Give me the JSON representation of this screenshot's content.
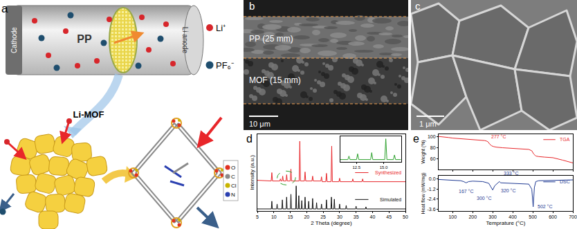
{
  "figure": {
    "a": {
      "label": "a",
      "cell": {
        "cathode": "Cathode",
        "separator": "PP",
        "anode": "Li anode"
      },
      "material": "Li-MOF",
      "ions": [
        {
          "label": "Li⁺",
          "color": "#d7262b"
        },
        {
          "label": "PF₆⁻",
          "color": "#1f4e6e"
        }
      ],
      "atoms": [
        {
          "label": "O",
          "color": "#e03020"
        },
        {
          "label": "C",
          "color": "#8a8a8a"
        },
        {
          "label": "Cl",
          "color": "#c8b400"
        },
        {
          "label": "N",
          "color": "#2a3fb0"
        }
      ]
    },
    "b": {
      "label": "b",
      "layers": [
        "PP (25 mm)",
        "MOF (15 mm)"
      ],
      "scale_bar": "10 μm"
    },
    "c": {
      "label": "c",
      "scale_bar": "1 μm"
    },
    "d": {
      "label": "d"
    },
    "e": {
      "label": "e"
    }
  },
  "chart_data": [
    {
      "type": "line",
      "x_label": "2 Theta (degree)",
      "y_label": "Intensity (a.u.)",
      "xlim": [
        5,
        50
      ],
      "xticks": [
        5,
        10,
        15,
        20,
        25,
        30,
        35,
        40,
        45,
        50
      ],
      "ylim": [
        0,
        1.1
      ],
      "tick_labels": "x",
      "grid": false,
      "series": [
        {
          "name": "Synthesized",
          "color": "#e8262a",
          "x": [
            5,
            9.2,
            9.4,
            9.6,
            11.8,
            12.0,
            12.2,
            12.5,
            12.7,
            12.9,
            13.7,
            13.9,
            14.1,
            15.0,
            15.2,
            15.4,
            17.7,
            17.9,
            18.1,
            19.3,
            19.5,
            19.7,
            21.6,
            21.8,
            22.0,
            24.3,
            24.5,
            24.7,
            25.8,
            26.0,
            26.2,
            27.4,
            27.6,
            27.8,
            29.8,
            30.0,
            30.2,
            33.8,
            34.0,
            34.2,
            36.8,
            37.0,
            37.2,
            50
          ],
          "values": [
            0.44,
            0.43,
            0.55,
            0.43,
            0.43,
            0.46,
            0.43,
            0.43,
            0.5,
            0.43,
            0.43,
            0.52,
            0.43,
            0.43,
            0.6,
            0.43,
            0.43,
            1.0,
            0.43,
            0.43,
            0.56,
            0.43,
            0.43,
            0.5,
            0.43,
            0.43,
            0.49,
            0.42,
            0.42,
            0.54,
            0.42,
            0.42,
            0.93,
            0.42,
            0.42,
            0.47,
            0.42,
            0.42,
            0.46,
            0.42,
            0.42,
            0.46,
            0.42,
            0.42
          ]
        },
        {
          "name": "Simulated",
          "color": "#111111",
          "x": [
            5,
            9.25,
            9.4,
            9.55,
            10.85,
            11.0,
            11.15,
            12.45,
            12.6,
            12.75,
            13.75,
            13.9,
            14.05,
            15.05,
            15.2,
            15.35,
            16.65,
            16.8,
            16.95,
            17.45,
            17.6,
            17.75,
            18.35,
            18.5,
            18.65,
            19.35,
            19.5,
            19.65,
            20.45,
            20.6,
            20.75,
            21.65,
            21.8,
            21.95,
            22.85,
            23.0,
            23.15,
            24.35,
            24.5,
            24.65,
            25.85,
            26.0,
            26.15,
            27.35,
            27.5,
            27.65,
            28.25,
            28.4,
            28.55,
            29.85,
            30.0,
            30.15,
            31.85,
            32.0,
            32.15,
            34.85,
            35.0,
            35.15,
            37.85,
            38.0,
            38.15,
            50
          ],
          "values": [
            0.03,
            0.03,
            0.14,
            0.03,
            0.03,
            0.1,
            0.03,
            0.03,
            0.16,
            0.03,
            0.03,
            0.2,
            0.03,
            0.03,
            0.24,
            0.03,
            0.03,
            0.36,
            0.03,
            0.03,
            0.22,
            0.03,
            0.03,
            0.15,
            0.03,
            0.03,
            0.2,
            0.03,
            0.03,
            0.14,
            0.03,
            0.03,
            0.18,
            0.03,
            0.03,
            0.12,
            0.03,
            0.03,
            0.1,
            0.03,
            0.03,
            0.16,
            0.03,
            0.03,
            0.2,
            0.03,
            0.03,
            0.17,
            0.03,
            0.03,
            0.1,
            0.03,
            0.03,
            0.08,
            0.03,
            0.03,
            0.07,
            0.03,
            0.03,
            0.06,
            0.03,
            0.03
          ]
        }
      ]
    },
    {
      "type": "line",
      "xlim": [
        11,
        16.6
      ],
      "xticks": [
        12.5,
        {
          "value": 15,
          "label": "15.0"
        }
      ],
      "ylim": [
        0,
        1.1
      ],
      "tick_labels": "x",
      "grid": false,
      "series": [
        {
          "color": "#2ca02c",
          "x": [
            11,
            11.7,
            11.8,
            11.9,
            12.5,
            12.6,
            12.7,
            13.8,
            13.9,
            14.0,
            15.1,
            15.2,
            15.3,
            15.9,
            16.0,
            16.1,
            16.6
          ],
          "values": [
            0.1,
            0.1,
            0.25,
            0.1,
            0.1,
            0.35,
            0.1,
            0.1,
            0.4,
            0.1,
            0.1,
            1.0,
            0.1,
            0.1,
            0.3,
            0.1,
            0.1
          ]
        }
      ]
    },
    {
      "type": "line",
      "y_label": "Weight (%)",
      "xlim": [
        30,
        700
      ],
      "xticks": [
        100,
        200,
        300,
        400,
        500,
        600,
        700
      ],
      "ylim": [
        40,
        104
      ],
      "yticks": [
        60,
        80,
        100
      ],
      "tick_labels": "y",
      "grid": false,
      "series": [
        {
          "name": "TGA",
          "color": "#e8262a",
          "x": [
            30,
            50,
            80,
            100,
            150,
            200,
            240,
            260,
            270,
            277,
            285,
            295,
            305,
            320,
            350,
            400,
            450,
            480,
            495,
            505,
            515,
            530,
            560,
            600,
            650,
            700
          ],
          "values": [
            100,
            99.5,
            98,
            97,
            95.5,
            94.5,
            93.5,
            92.5,
            91.5,
            90,
            86,
            83,
            81.5,
            80.5,
            79.5,
            78.5,
            77.5,
            76.5,
            74,
            68,
            64.5,
            63.5,
            62.5,
            61.5,
            57,
            52
          ]
        }
      ],
      "annotations": [
        {
          "text": "277 °C",
          "x": 277,
          "y": 93
        }
      ]
    },
    {
      "type": "line",
      "x_label": "Temprature (°C)",
      "y_label": "Heat flow (mW/mg)",
      "xlim": [
        30,
        700
      ],
      "xticks": [
        100,
        200,
        300,
        400,
        500,
        600,
        700
      ],
      "ylim": [
        -3.8,
        0.4
      ],
      "yticks": [
        {
          "value": 0,
          "label": "0.0"
        },
        -1.2,
        -2.4,
        -3.6
      ],
      "grid": false,
      "series": [
        {
          "name": "DSC",
          "color": "#1f3a93",
          "x": [
            30,
            60,
            100,
            140,
            155,
            167,
            180,
            200,
            250,
            280,
            290,
            300,
            310,
            320,
            327,
            333,
            340,
            380,
            450,
            480,
            495,
            502,
            508,
            515,
            530,
            600,
            700
          ],
          "values": [
            -0.05,
            -0.1,
            -0.15,
            -0.2,
            -0.3,
            -0.45,
            -0.3,
            -0.25,
            -0.3,
            -0.5,
            -0.9,
            -1.3,
            -0.8,
            -0.6,
            -0.4,
            -0.3,
            -0.45,
            -0.5,
            -0.55,
            -0.6,
            -1.2,
            -3.3,
            -1.0,
            -0.3,
            -0.2,
            -0.15,
            -0.1
          ]
        }
      ],
      "annotations": [
        {
          "text": "167 °C",
          "x": 167,
          "y": -1.0
        },
        {
          "text": "300 °C",
          "x": 300,
          "y": -1.8
        },
        {
          "text": "320 °C",
          "x": 320,
          "y": -0.9
        },
        {
          "text": "333 °C",
          "x": 333,
          "y": 0.2
        },
        {
          "text": "502 °C",
          "x": 502,
          "y": -3.3
        }
      ]
    }
  ]
}
